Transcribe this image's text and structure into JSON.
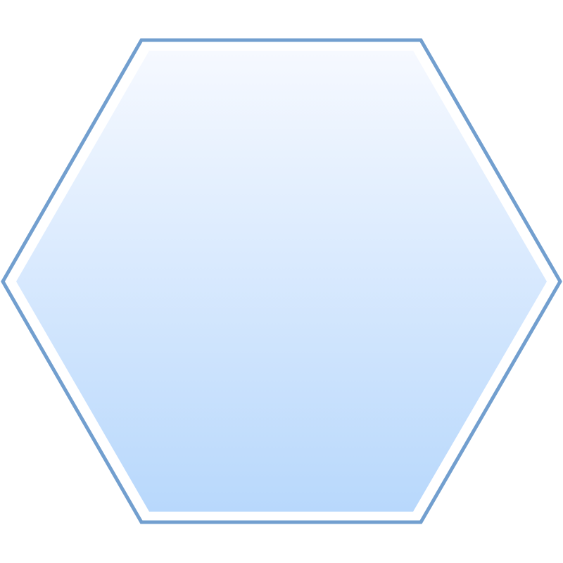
{
  "shape": {
    "type": "hexagon-icon",
    "colors": {
      "outline": "#729fcf",
      "gap": "#ffffff",
      "fill_top": "#f6f9ff",
      "fill_bottom": "#b8d8fc"
    }
  }
}
